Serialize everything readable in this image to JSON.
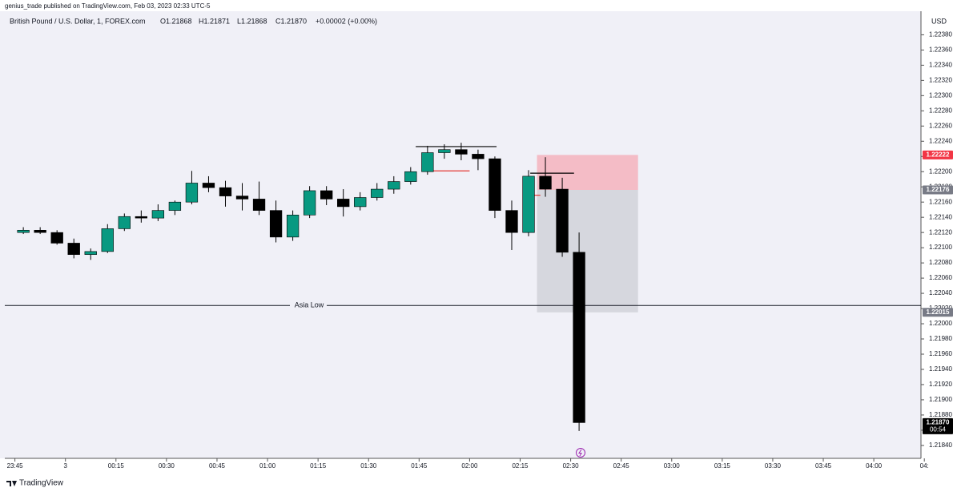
{
  "header": "genius_trade published on TradingView.com, Feb 03, 2023 02:33 UTC-5",
  "footer": "TradingView",
  "chart_data": {
    "type": "candlestick",
    "title": "British Pound / U.S. Dollar, 1, FOREX.com",
    "ohlc_labels": [
      "O1.21868",
      "H1.21871",
      "L1.21868",
      "C1.21870"
    ],
    "change_label": "+0.00002 (+0.00%)",
    "y_unit": "USD",
    "up_color": "#089981",
    "down_color": "#000000",
    "grid": false,
    "x": [
      "23:45",
      "23:50",
      "23:55",
      "00:00",
      "00:05",
      "00:10",
      "00:15",
      "00:20",
      "00:25",
      "00:30",
      "00:35",
      "00:40",
      "00:45",
      "00:50",
      "00:55",
      "01:00",
      "01:05",
      "01:10",
      "01:15",
      "01:20",
      "01:25",
      "01:30",
      "01:35",
      "01:40",
      "01:45",
      "01:50",
      "01:55",
      "02:00",
      "02:05",
      "02:10",
      "02:15",
      "02:20",
      "02:25",
      "02:30"
    ],
    "open": [
      1.2212,
      1.22123,
      1.2212,
      1.22106,
      1.22091,
      1.22095,
      1.22125,
      1.22141,
      1.22139,
      1.22149,
      1.2216,
      1.22185,
      1.22179,
      1.22168,
      1.22164,
      1.22149,
      1.22114,
      1.22143,
      1.22175,
      1.22164,
      1.22154,
      1.22166,
      1.22177,
      1.22187,
      1.222,
      1.22225,
      1.22229,
      1.22223,
      1.22217,
      1.22149,
      1.2212,
      1.22194,
      1.22177,
      1.22094
    ],
    "high": [
      1.22127,
      1.22127,
      1.22123,
      1.22112,
      1.22099,
      1.22131,
      1.22145,
      1.22149,
      1.22157,
      1.22162,
      1.22201,
      1.22194,
      1.22188,
      1.22185,
      1.22187,
      1.22162,
      1.22149,
      1.22181,
      1.22181,
      1.22177,
      1.22173,
      1.22185,
      1.22194,
      1.22206,
      1.22234,
      1.22236,
      1.22238,
      1.22229,
      1.2222,
      1.22162,
      1.22202,
      1.22219,
      1.22192,
      1.2212
    ],
    "low": [
      1.22118,
      1.22118,
      1.22104,
      1.22086,
      1.22084,
      1.22093,
      1.22122,
      1.22133,
      1.22135,
      1.22143,
      1.22157,
      1.22173,
      1.22154,
      1.22149,
      1.22143,
      1.22107,
      1.22109,
      1.22139,
      1.22156,
      1.22141,
      1.22149,
      1.22162,
      1.22171,
      1.22183,
      1.22196,
      1.22217,
      1.22215,
      1.22202,
      1.22139,
      1.22097,
      1.22115,
      1.22167,
      1.22088,
      1.21859
    ],
    "close": [
      1.22123,
      1.2212,
      1.22106,
      1.22091,
      1.22095,
      1.22125,
      1.22141,
      1.22139,
      1.22149,
      1.2216,
      1.22185,
      1.22179,
      1.22168,
      1.22164,
      1.22149,
      1.22114,
      1.22143,
      1.22175,
      1.22164,
      1.22154,
      1.22166,
      1.22177,
      1.22187,
      1.222,
      1.22225,
      1.22229,
      1.22223,
      1.22217,
      1.22149,
      1.2212,
      1.22194,
      1.22177,
      1.22094,
      1.2187
    ],
    "xlim": [
      "23:42",
      "04:14"
    ],
    "xticks": [
      "23:45",
      {
        "value": "00:00",
        "label": "3"
      },
      "00:15",
      "00:30",
      "00:45",
      "01:00",
      "01:15",
      "01:30",
      "01:45",
      "02:00",
      "02:15",
      "02:30",
      "02:45",
      "03:00",
      "03:15",
      "03:30",
      "03:45",
      "04:00",
      {
        "value": "04:15",
        "label": "04:"
      }
    ],
    "ylim": [
      1.21823,
      1.22411
    ],
    "yticks": [
      {
        "value": 1.2184,
        "label": "1.21840"
      },
      {
        "value": 1.2186,
        "label": "1.21860"
      },
      {
        "value": 1.2188,
        "label": "1.21880"
      },
      {
        "value": 1.219,
        "label": "1.21900"
      },
      {
        "value": 1.2192,
        "label": "1.21920"
      },
      {
        "value": 1.2194,
        "label": "1.21940"
      },
      {
        "value": 1.2196,
        "label": "1.21960"
      },
      {
        "value": 1.2198,
        "label": "1.21980"
      },
      {
        "value": 1.22,
        "label": "1.22000"
      },
      {
        "value": 1.2202,
        "label": "1.22020"
      },
      {
        "value": 1.2204,
        "label": "1.22040"
      },
      {
        "value": 1.2206,
        "label": "1.22060"
      },
      {
        "value": 1.2208,
        "label": "1.22080"
      },
      {
        "value": 1.221,
        "label": "1.22100"
      },
      {
        "value": 1.2212,
        "label": "1.22120"
      },
      {
        "value": 1.2214,
        "label": "1.22140"
      },
      {
        "value": 1.2216,
        "label": "1.22160"
      },
      {
        "value": 1.2218,
        "label": "1.22180"
      },
      {
        "value": 1.222,
        "label": "1.22200"
      },
      {
        "value": 1.2222,
        "label": "1.22220"
      },
      {
        "value": 1.2224,
        "label": "1.22240"
      },
      {
        "value": 1.2226,
        "label": "1.22260"
      },
      {
        "value": 1.2228,
        "label": "1.22280"
      },
      {
        "value": 1.223,
        "label": "1.22300"
      },
      {
        "value": 1.2232,
        "label": "1.22320"
      },
      {
        "value": 1.2234,
        "label": "1.22340"
      },
      {
        "value": 1.2236,
        "label": "1.22360"
      },
      {
        "value": 1.2238,
        "label": "1.22380"
      }
    ],
    "position": {
      "entry": 1.22176,
      "stop": 1.22222,
      "target": 1.22015,
      "start": "02:20",
      "end": "02:50",
      "stop_color": "#f4b6c0",
      "target_color": "#d3d4da"
    },
    "levels": [
      {
        "value": 1.22233,
        "start": "01:44",
        "end": "02:08",
        "color": "#000000"
      },
      {
        "value": 1.22201,
        "start": "01:47",
        "end": "02:00",
        "color": "#e53935"
      },
      {
        "value": 1.22198,
        "start": "02:18",
        "end": "02:31",
        "color": "#000000"
      },
      {
        "value": 1.22169,
        "start": "02:18",
        "end": "02:21",
        "color": "#e53935"
      }
    ],
    "asia_low": {
      "label": "Asia Low",
      "value": 1.22024
    },
    "price_labels": [
      {
        "value": 1.22222,
        "label": "1.22222",
        "color": "#f23645"
      },
      {
        "value": 1.22176,
        "label": "1.22176",
        "color": "#787b86"
      },
      {
        "value": 1.22015,
        "label": "1.22015",
        "color": "#787b86"
      },
      {
        "value": 1.2187,
        "label": "1.21870",
        "sublabel": "00:54",
        "color": "#000000"
      }
    ]
  }
}
